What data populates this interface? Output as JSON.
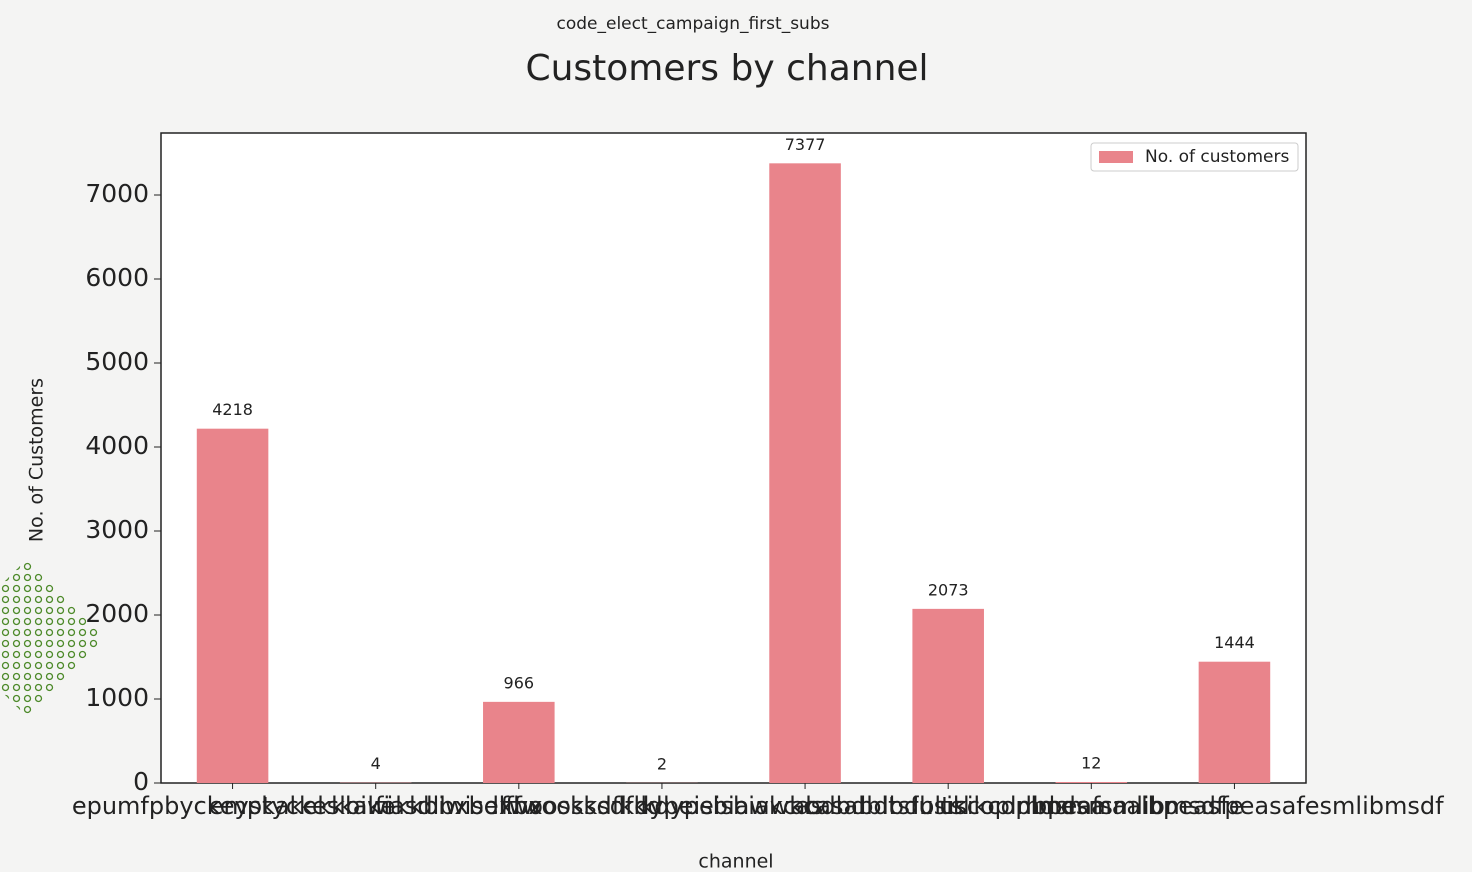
{
  "chart_data": {
    "type": "bar",
    "subtitle": "code_elect_campaign_first_subs",
    "title": "Customers by channel",
    "x_label": "channel",
    "y_label": "No. of Customers",
    "categories": [
      "epumfpbyckeyskakekkbiwi",
      "emptyckeskakekkbiwisdxbx",
      "fiasdlbxbelffwoosksdfkd",
      "fwoosksdfkdypeisbiawkcas",
      "kdypeisbiawkcasabdbdbltsl",
      "abdbdbltsfusikcoplmdsma",
      "usikcoplmdsmaalbpeasfe",
      "lbpeafsmlibmsdfpeasafesmlibmsdf"
    ],
    "series": [
      {
        "name": "No. of customers",
        "color": "#e9848b",
        "values": [
          4218,
          4,
          966,
          2,
          7377,
          2073,
          12,
          1444
        ]
      }
    ],
    "ylim": [
      0,
      7738
    ],
    "yticks": [
      0,
      1000,
      2000,
      3000,
      4000,
      5000,
      6000,
      7000
    ],
    "legend": "upper-right"
  }
}
